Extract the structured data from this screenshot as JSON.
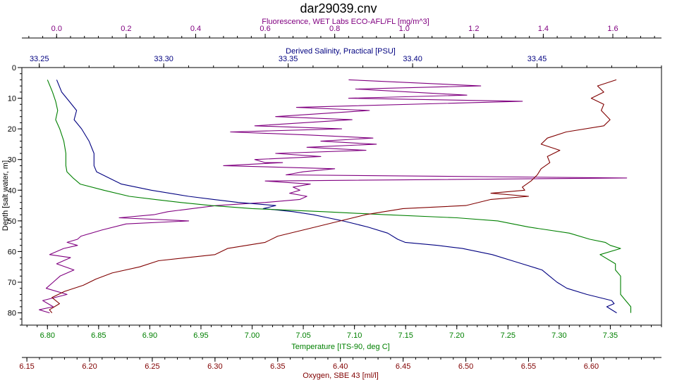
{
  "chart_data": {
    "type": "line",
    "title": "dar29039.cnv",
    "y_axis": {
      "label": "Depth [salt water, m]",
      "range": [
        0,
        84
      ],
      "ticks": [
        0,
        10,
        20,
        30,
        40,
        50,
        60,
        70,
        80
      ],
      "inverted": true
    },
    "axes": {
      "fluorescence": {
        "label": "Fluorescence, WET Labs ECO-AFL/FL [mg/m^3]",
        "range": [
          -0.1,
          1.74
        ],
        "ticks": [
          "0.0",
          "0.2",
          "0.4",
          "0.6",
          "0.8",
          "1.0",
          "1.2",
          "1.4",
          "1.6"
        ],
        "color": "#800080"
      },
      "salinity": {
        "label": "Derived Salinity, Practical [PSU]",
        "range": [
          33.243,
          33.5
        ],
        "ticks": [
          "33.25",
          "33.30",
          "33.35",
          "33.40",
          "33.45"
        ],
        "color": "#000080"
      },
      "temperature": {
        "label": "Temperature [ITS-90, deg C]",
        "range": [
          6.775,
          7.4
        ],
        "ticks": [
          "6.80",
          "6.85",
          "6.90",
          "6.95",
          "7.00",
          "7.05",
          "7.10",
          "7.15",
          "7.20",
          "7.25",
          "7.30",
          "7.35"
        ],
        "color": "#008000"
      },
      "oxygen": {
        "label": "Oxygen, SBE 43 [ml/l]",
        "range": [
          6.146,
          6.656
        ],
        "ticks": [
          "6.15",
          "6.20",
          "6.25",
          "6.30",
          "6.35",
          "6.40",
          "6.45",
          "6.50",
          "6.55",
          "6.60"
        ],
        "color": "#800000"
      }
    },
    "series": [
      {
        "axis": "fluorescence",
        "color": "#800080",
        "points": [
          [
            0.84,
            4
          ],
          [
            1.22,
            6
          ],
          [
            0.86,
            7
          ],
          [
            1.18,
            9
          ],
          [
            0.84,
            10
          ],
          [
            1.34,
            11
          ],
          [
            0.69,
            13
          ],
          [
            0.9,
            14
          ],
          [
            0.63,
            16
          ],
          [
            0.85,
            17
          ],
          [
            0.57,
            19
          ],
          [
            0.82,
            20
          ],
          [
            0.5,
            21
          ],
          [
            0.73,
            22
          ],
          [
            0.91,
            23
          ],
          [
            0.76,
            24
          ],
          [
            0.92,
            25
          ],
          [
            0.72,
            26
          ],
          [
            0.89,
            27
          ],
          [
            0.63,
            28
          ],
          [
            0.76,
            29
          ],
          [
            0.57,
            30
          ],
          [
            0.6,
            31
          ],
          [
            0.65,
            31
          ],
          [
            0.48,
            32
          ],
          [
            0.8,
            33
          ],
          [
            0.71,
            34
          ],
          [
            0.66,
            35
          ],
          [
            1.64,
            36
          ],
          [
            0.6,
            37
          ],
          [
            0.73,
            38
          ],
          [
            0.68,
            39
          ],
          [
            0.7,
            40
          ],
          [
            0.67,
            41
          ],
          [
            0.72,
            42
          ],
          [
            0.7,
            43
          ],
          [
            0.6,
            44
          ],
          [
            0.46,
            45
          ],
          [
            0.39,
            46
          ],
          [
            0.32,
            47
          ],
          [
            0.28,
            48
          ],
          [
            0.18,
            49
          ],
          [
            0.38,
            50
          ],
          [
            0.2,
            51
          ],
          [
            0.13,
            53
          ],
          [
            0.07,
            55
          ],
          [
            0.06,
            56
          ],
          [
            0.03,
            57
          ],
          [
            0.06,
            58
          ],
          [
            0.02,
            59
          ],
          [
            -0.02,
            61
          ],
          [
            0.04,
            62
          ],
          [
            0.0,
            64
          ],
          [
            0.05,
            66
          ],
          [
            0.01,
            68
          ],
          [
            -0.01,
            70
          ],
          [
            -0.03,
            72
          ],
          [
            0.03,
            74
          ],
          [
            -0.04,
            76
          ],
          [
            -0.01,
            78
          ],
          [
            -0.05,
            79
          ],
          [
            -0.02,
            80
          ]
        ]
      },
      {
        "axis": "salinity",
        "color": "#000080",
        "points": [
          [
            33.257,
            4
          ],
          [
            33.259,
            8
          ],
          [
            33.262,
            11
          ],
          [
            33.265,
            14
          ],
          [
            33.264,
            17
          ],
          [
            33.267,
            20
          ],
          [
            33.27,
            24
          ],
          [
            33.272,
            28
          ],
          [
            33.272,
            32
          ],
          [
            33.273,
            34
          ],
          [
            33.278,
            36
          ],
          [
            33.283,
            38
          ],
          [
            33.295,
            40
          ],
          [
            33.31,
            42
          ],
          [
            33.32,
            43
          ],
          [
            33.33,
            44
          ],
          [
            33.345,
            45
          ],
          [
            33.34,
            46
          ],
          [
            33.352,
            47
          ],
          [
            33.36,
            48
          ],
          [
            33.366,
            49
          ],
          [
            33.372,
            50
          ],
          [
            33.382,
            52
          ],
          [
            33.39,
            54
          ],
          [
            33.394,
            56
          ],
          [
            33.397,
            57
          ],
          [
            33.41,
            58
          ],
          [
            33.42,
            59
          ],
          [
            33.432,
            61
          ],
          [
            33.44,
            63
          ],
          [
            33.444,
            64
          ],
          [
            33.452,
            66
          ],
          [
            33.455,
            68
          ],
          [
            33.458,
            70
          ],
          [
            33.462,
            72
          ],
          [
            33.47,
            74
          ],
          [
            33.48,
            76
          ],
          [
            33.481,
            77
          ],
          [
            33.478,
            78
          ],
          [
            33.482,
            80
          ]
        ]
      },
      {
        "axis": "temperature",
        "color": "#008000",
        "points": [
          [
            6.8,
            4
          ],
          [
            6.805,
            8
          ],
          [
            6.808,
            11
          ],
          [
            6.81,
            14
          ],
          [
            6.808,
            17
          ],
          [
            6.812,
            20
          ],
          [
            6.816,
            24
          ],
          [
            6.818,
            28
          ],
          [
            6.818,
            32
          ],
          [
            6.819,
            34
          ],
          [
            6.825,
            36
          ],
          [
            6.832,
            38
          ],
          [
            6.855,
            40
          ],
          [
            6.88,
            42
          ],
          [
            6.905,
            43
          ],
          [
            6.93,
            44
          ],
          [
            6.96,
            45
          ],
          [
            7.0,
            46
          ],
          [
            7.07,
            47
          ],
          [
            7.13,
            48
          ],
          [
            7.2,
            49
          ],
          [
            7.24,
            50
          ],
          [
            7.27,
            52
          ],
          [
            7.31,
            54
          ],
          [
            7.33,
            56
          ],
          [
            7.345,
            57
          ],
          [
            7.35,
            58
          ],
          [
            7.36,
            59
          ],
          [
            7.34,
            61
          ],
          [
            7.355,
            64
          ],
          [
            7.355,
            66
          ],
          [
            7.36,
            68
          ],
          [
            7.36,
            70
          ],
          [
            7.36,
            72
          ],
          [
            7.36,
            74
          ],
          [
            7.365,
            76
          ],
          [
            7.37,
            78
          ],
          [
            7.37,
            80
          ]
        ]
      },
      {
        "axis": "oxygen",
        "color": "#800000",
        "points": [
          [
            6.62,
            4
          ],
          [
            6.605,
            6
          ],
          [
            6.61,
            8
          ],
          [
            6.6,
            10
          ],
          [
            6.61,
            12
          ],
          [
            6.608,
            14
          ],
          [
            6.615,
            17
          ],
          [
            6.61,
            19
          ],
          [
            6.58,
            21
          ],
          [
            6.565,
            23
          ],
          [
            6.56,
            25
          ],
          [
            6.575,
            27
          ],
          [
            6.565,
            29
          ],
          [
            6.567,
            31
          ],
          [
            6.56,
            33
          ],
          [
            6.557,
            35
          ],
          [
            6.552,
            37
          ],
          [
            6.545,
            39
          ],
          [
            6.547,
            40
          ],
          [
            6.52,
            41
          ],
          [
            6.55,
            42
          ],
          [
            6.52,
            43
          ],
          [
            6.5,
            45
          ],
          [
            6.45,
            46
          ],
          [
            6.42,
            48
          ],
          [
            6.4,
            50
          ],
          [
            6.38,
            52
          ],
          [
            6.35,
            55
          ],
          [
            6.34,
            57
          ],
          [
            6.31,
            59
          ],
          [
            6.3,
            61
          ],
          [
            6.255,
            63
          ],
          [
            6.24,
            65
          ],
          [
            6.218,
            67
          ],
          [
            6.205,
            69
          ],
          [
            6.195,
            71
          ],
          [
            6.18,
            73
          ],
          [
            6.17,
            75
          ],
          [
            6.176,
            77
          ],
          [
            6.168,
            79
          ],
          [
            6.17,
            80
          ]
        ]
      }
    ],
    "grid": false,
    "legend": "none"
  }
}
